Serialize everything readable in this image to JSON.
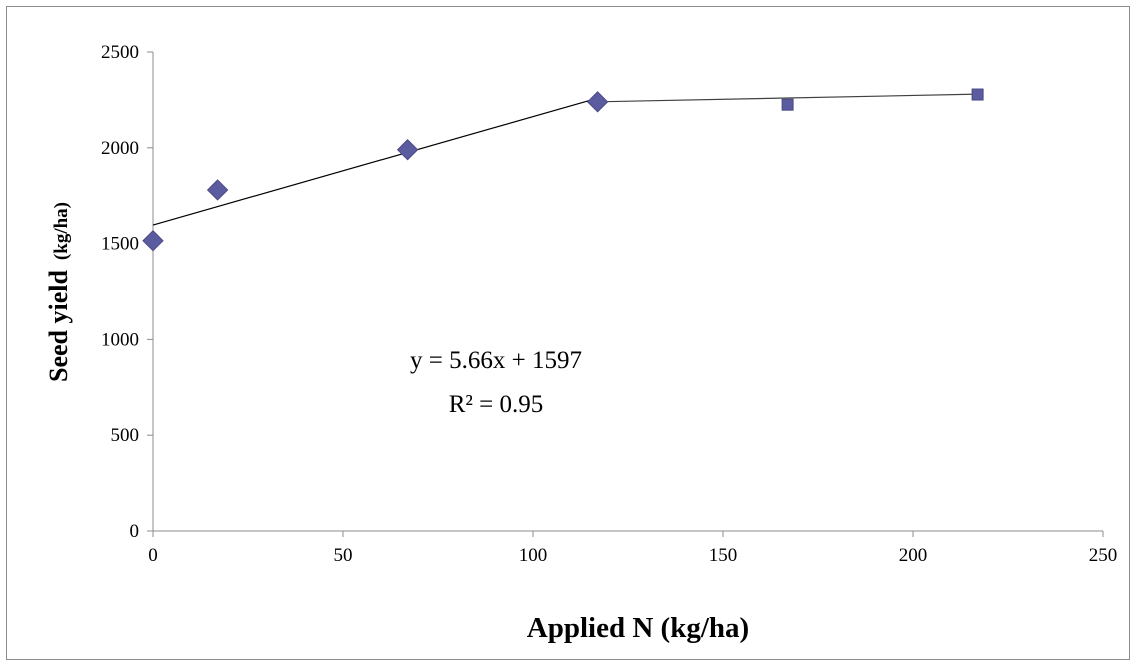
{
  "chart_data": {
    "type": "scatter",
    "xlabel": "Applied N (kg/ha)",
    "ylabel_main": "Seed yield",
    "ylabel_unit": "(kg/ha)",
    "xlim": [
      0,
      250
    ],
    "ylim": [
      0,
      2500
    ],
    "x_ticks": [
      0,
      50,
      100,
      150,
      200,
      250
    ],
    "y_ticks": [
      0,
      500,
      1000,
      1500,
      2000,
      2500
    ],
    "grid": false,
    "series": [
      {
        "marker": "diamond",
        "color": "#5b5b9f",
        "points": [
          [
            0,
            1515
          ],
          [
            17,
            1780
          ],
          [
            67,
            1990
          ],
          [
            117,
            2240
          ]
        ]
      },
      {
        "marker": "square",
        "color": "#5b5b9f",
        "points": [
          [
            167,
            2225
          ],
          [
            217,
            2278
          ]
        ]
      }
    ],
    "lines": [
      {
        "kind": "linear-fit",
        "color": "#000000",
        "points": [
          [
            0,
            1597
          ],
          [
            117,
            2259
          ]
        ]
      },
      {
        "kind": "plateau",
        "color": "#404040",
        "points": [
          [
            117,
            2240
          ],
          [
            217,
            2280
          ]
        ]
      }
    ],
    "annotation": {
      "equation": "y = 5.66x + 1597",
      "r2": "R² = 0.95"
    }
  }
}
